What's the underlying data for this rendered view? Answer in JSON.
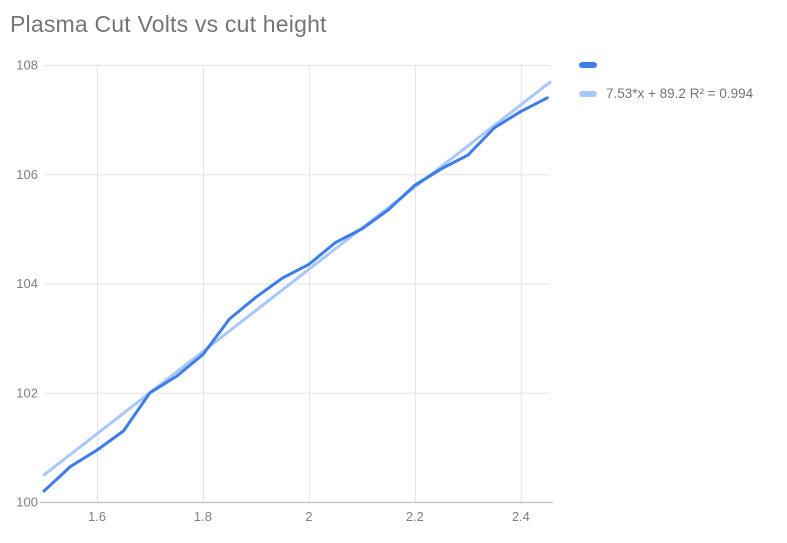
{
  "title": "Plasma Cut Volts vs cut height",
  "colors": {
    "background": "#ffffff",
    "series": "#3e7de9",
    "trendline": "#a8c7fa",
    "gridline": "#e3e3e3",
    "axis_line": "#c2c2c2",
    "title_text": "#757575",
    "tick_text": "#7f7f7f",
    "legend_text": "#757575"
  },
  "legend": {
    "entries": [
      {
        "label": "",
        "color": "#3e7de9"
      },
      {
        "label": "7.53*x + 89.2 R² = 0.994",
        "color": "#a8c7fa"
      }
    ]
  },
  "chart_data": {
    "type": "line",
    "title": "Plasma Cut Volts vs cut height",
    "xlabel": "",
    "ylabel": "",
    "xlim": [
      1.5,
      2.455
    ],
    "ylim": [
      100,
      108
    ],
    "grid": true,
    "legend_position": "right-top",
    "x_ticks": [
      1.6,
      1.8,
      2.0,
      2.2,
      2.4
    ],
    "x_tick_labels": [
      "1.6",
      "1.8",
      "2",
      "2.2",
      "2.4"
    ],
    "y_ticks": [
      100,
      102,
      104,
      106,
      108
    ],
    "y_tick_labels": [
      "100",
      "102",
      "104",
      "106",
      "108"
    ],
    "series": [
      {
        "name": "",
        "kind": "data",
        "x": [
          1.5,
          1.55,
          1.6,
          1.65,
          1.7,
          1.75,
          1.8,
          1.85,
          1.9,
          1.95,
          2.0,
          2.05,
          2.1,
          2.15,
          2.2,
          2.25,
          2.3,
          2.35,
          2.4,
          2.45
        ],
        "y": [
          100.2,
          100.65,
          100.95,
          101.3,
          102.0,
          102.3,
          102.7,
          103.35,
          103.75,
          104.1,
          104.35,
          104.75,
          105.0,
          105.35,
          105.8,
          106.1,
          106.35,
          106.85,
          107.15,
          107.4
        ]
      },
      {
        "name": "7.53*x + 89.2 R² = 0.994",
        "kind": "trendline",
        "slope": 7.53,
        "intercept": 89.2,
        "r_squared": 0.994
      }
    ]
  }
}
